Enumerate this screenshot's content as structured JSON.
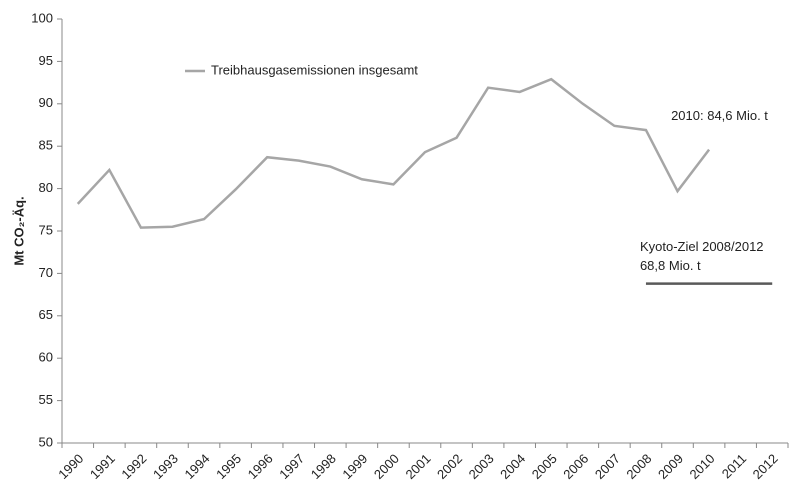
{
  "chart_data": {
    "type": "line",
    "ylabel": "Mt CO₂-Äq.",
    "categories": [
      "1990",
      "1991",
      "1992",
      "1993",
      "1994",
      "1995",
      "1996",
      "1997",
      "1998",
      "1999",
      "2000",
      "2001",
      "2002",
      "2003",
      "2004",
      "2005",
      "2006",
      "2007",
      "2008",
      "2009",
      "2010",
      "2011",
      "2012"
    ],
    "series": [
      {
        "name": "Treibhausgasemissionen insgesamt",
        "color": "#a6a6a6",
        "legend": true,
        "values": [
          78.2,
          82.2,
          75.4,
          75.5,
          76.4,
          79.9,
          83.7,
          83.3,
          82.6,
          81.1,
          80.5,
          84.3,
          86.0,
          91.9,
          91.4,
          92.9,
          90.0,
          87.4,
          86.9,
          79.7,
          84.6,
          null,
          null
        ],
        "annotation": "2010: 84,6 Mio. t"
      },
      {
        "name": "Kyoto-Ziel 2008/2012",
        "color": "#595959",
        "legend": false,
        "values": [
          null,
          null,
          null,
          null,
          null,
          null,
          null,
          null,
          null,
          null,
          null,
          null,
          null,
          null,
          null,
          null,
          null,
          null,
          68.8,
          68.8,
          68.8,
          68.8,
          68.8
        ],
        "annotation": "68,8 Mio. t"
      }
    ],
    "ylim": [
      50,
      100
    ],
    "yticks": [
      50,
      55,
      60,
      65,
      70,
      75,
      80,
      85,
      90,
      95,
      100
    ],
    "grid": false,
    "legend_position": "top-left"
  }
}
